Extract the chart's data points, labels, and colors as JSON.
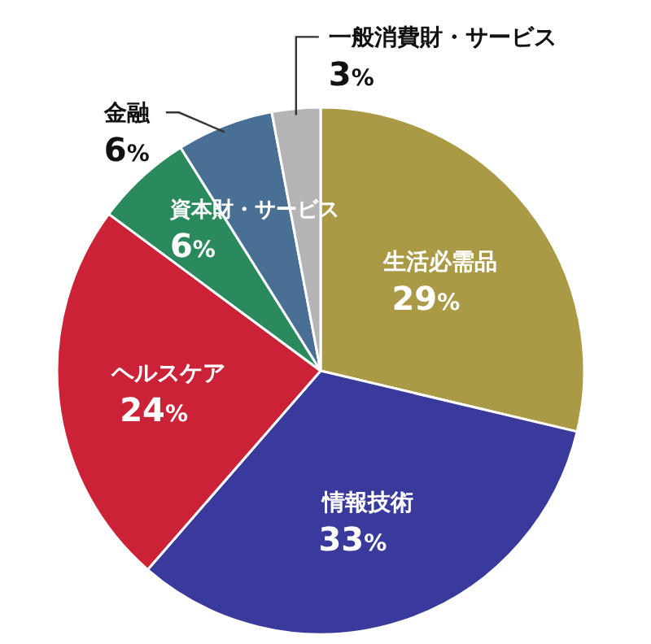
{
  "chart_data": {
    "type": "pie",
    "categories": [
      "生活必需品",
      "情報技術",
      "ヘルスケア",
      "資本財・サービス",
      "金融",
      "一般消費財・サービス"
    ],
    "values": [
      29,
      33,
      24,
      6,
      6,
      3
    ],
    "value_labels": [
      "29%",
      "33%",
      "24%",
      "6%",
      "6%",
      "3%"
    ],
    "colors": [
      "#ab9a45",
      "#3a3a9c",
      "#cc2238",
      "#2a8a5e",
      "#4a6f95",
      "#b4b4b4"
    ]
  }
}
